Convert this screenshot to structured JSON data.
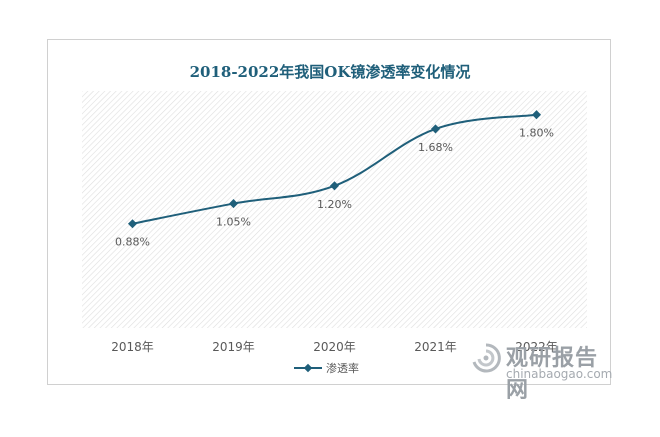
{
  "chart_data": {
    "type": "line",
    "title": "2018-2022年我国OK镜渗透率变化情况",
    "categories": [
      "2018年",
      "2019年",
      "2020年",
      "2021年",
      "2022年"
    ],
    "series": [
      {
        "name": "渗透率",
        "values": [
          0.88,
          1.05,
          1.2,
          1.68,
          1.8
        ],
        "labels": [
          "0.88%",
          "1.05%",
          "1.20%",
          "1.68%",
          "1.80%"
        ]
      }
    ],
    "ylim": [
      0,
      2.0
    ],
    "xlabel": "",
    "ylabel": "",
    "grid": false,
    "legend_position": "bottom",
    "colors": {
      "line": "#1f5f7a",
      "title": "#1f5f7a",
      "text": "#595959",
      "plot_hatch": "#d9d9d9"
    }
  },
  "watermark": {
    "cn_text": "观研报告网",
    "en_text": "chinabaogao.com",
    "icon": "swirl-logo-icon"
  }
}
